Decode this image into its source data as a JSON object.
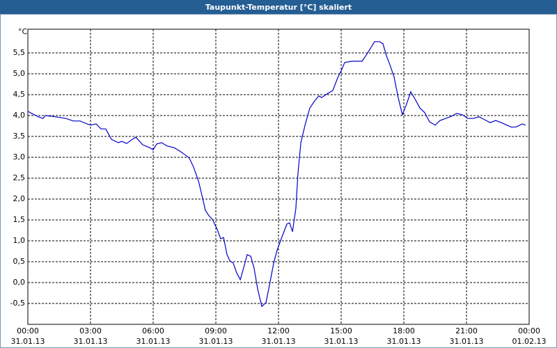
{
  "chart_data": {
    "type": "line",
    "title": "Taupunkt-Temperatur [°C] skaliert",
    "y_unit": "°C",
    "x": [
      0,
      0.5,
      0.73,
      0.83,
      1.33,
      1.83,
      2.17,
      2.5,
      2.83,
      3,
      3.27,
      3.5,
      3.73,
      4,
      4.33,
      4.5,
      4.73,
      5,
      5.17,
      5.5,
      5.83,
      6,
      6.17,
      6.4,
      6.67,
      7,
      7.27,
      7.5,
      7.73,
      7.93,
      8.17,
      8.33,
      8.5,
      8.67,
      8.83,
      9.07,
      9.23,
      9.37,
      9.53,
      9.67,
      9.83,
      10,
      10.17,
      10.33,
      10.5,
      10.67,
      10.83,
      11,
      11.2,
      11.4,
      11.6,
      11.77,
      11.93,
      12.17,
      12.4,
      12.53,
      12.67,
      12.83,
      12.93,
      13.07,
      13.27,
      13.5,
      13.73,
      13.93,
      14.07,
      14.33,
      14.6,
      14.83,
      15,
      15.17,
      15.5,
      15.83,
      16,
      16.23,
      16.43,
      16.6,
      16.83,
      17,
      17.17,
      17.33,
      17.53,
      17.73,
      17.93,
      18.13,
      18.33,
      18.53,
      18.77,
      19,
      19.23,
      19.5,
      19.73,
      20,
      20.27,
      20.53,
      20.8,
      21.07,
      21.33,
      21.6,
      21.87,
      22.13,
      22.4,
      22.67,
      22.93,
      23.17,
      23.4,
      23.67,
      23.83
    ],
    "series": [
      {
        "name": "Taupunkt-Temperatur",
        "color": "#0000c8",
        "values": [
          4.1,
          3.97,
          3.93,
          4.0,
          3.97,
          3.93,
          3.87,
          3.87,
          3.8,
          3.77,
          3.8,
          3.68,
          3.68,
          3.43,
          3.35,
          3.38,
          3.33,
          3.43,
          3.48,
          3.3,
          3.23,
          3.18,
          3.32,
          3.35,
          3.27,
          3.23,
          3.15,
          3.07,
          2.98,
          2.77,
          2.43,
          2.1,
          1.73,
          1.6,
          1.52,
          1.27,
          1.05,
          1.08,
          0.68,
          0.52,
          0.47,
          0.23,
          0.07,
          0.35,
          0.67,
          0.63,
          0.35,
          -0.15,
          -0.57,
          -0.48,
          0.02,
          0.47,
          0.77,
          1.1,
          1.4,
          1.43,
          1.22,
          1.77,
          2.6,
          3.35,
          3.77,
          4.18,
          4.35,
          4.47,
          4.43,
          4.52,
          4.6,
          4.9,
          5.07,
          5.27,
          5.3,
          5.3,
          5.3,
          5.47,
          5.63,
          5.77,
          5.77,
          5.72,
          5.43,
          5.22,
          4.93,
          4.43,
          4.02,
          4.27,
          4.57,
          4.4,
          4.18,
          4.07,
          3.85,
          3.77,
          3.88,
          3.93,
          3.98,
          4.05,
          4.02,
          3.93,
          3.93,
          3.97,
          3.9,
          3.83,
          3.88,
          3.83,
          3.77,
          3.72,
          3.73,
          3.8,
          3.77
        ]
      }
    ],
    "xlim": [
      0,
      24
    ],
    "xticks": [
      {
        "value": 0,
        "label": "00:00",
        "date": "31.01.13"
      },
      {
        "value": 3,
        "label": "03:00",
        "date": "31.01.13"
      },
      {
        "value": 6,
        "label": "06:00",
        "date": "31.01.13"
      },
      {
        "value": 9,
        "label": "09:00",
        "date": "31.01.13"
      },
      {
        "value": 12,
        "label": "12:00",
        "date": "31.01.13"
      },
      {
        "value": 15,
        "label": "15:00",
        "date": "31.01.13"
      },
      {
        "value": 18,
        "label": "18:00",
        "date": "31.01.13"
      },
      {
        "value": 21,
        "label": "21:00",
        "date": "31.01.13"
      },
      {
        "value": 24,
        "label": "00:00",
        "date": "01.02.13"
      }
    ],
    "ylim": [
      -1,
      6
    ],
    "yticks": [
      {
        "value": -0.5,
        "label": "-0,5"
      },
      {
        "value": 0,
        "label": "0,0"
      },
      {
        "value": 0.5,
        "label": "0,5"
      },
      {
        "value": 1,
        "label": "1,0"
      },
      {
        "value": 1.5,
        "label": "1,5"
      },
      {
        "value": 2,
        "label": "2,0"
      },
      {
        "value": 2.5,
        "label": "2,5"
      },
      {
        "value": 3,
        "label": "3,0"
      },
      {
        "value": 3.5,
        "label": "3,5"
      },
      {
        "value": 4,
        "label": "4,0"
      },
      {
        "value": 4.5,
        "label": "4,5"
      },
      {
        "value": 5,
        "label": "5,0"
      },
      {
        "value": 5.5,
        "label": "5,5"
      }
    ],
    "grid": true
  }
}
